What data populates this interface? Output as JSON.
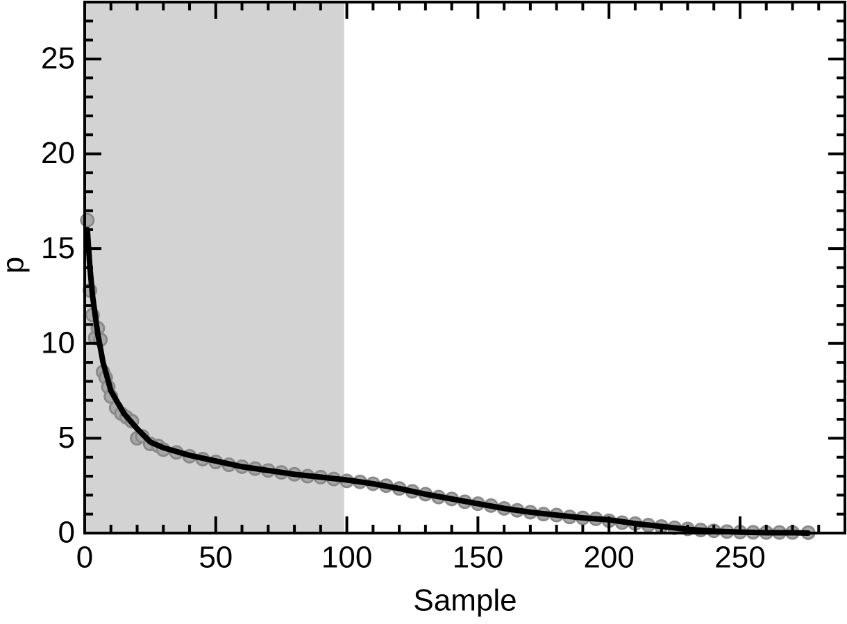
{
  "chart_data": {
    "type": "scatter-line",
    "xlabel": "Sample",
    "ylabel": "p",
    "xlim": [
      0,
      290
    ],
    "ylim": [
      0,
      28
    ],
    "xticks": [
      0,
      50,
      100,
      150,
      200,
      250
    ],
    "yticks": [
      0,
      5,
      10,
      15,
      20,
      25
    ],
    "xminorticks": [
      10,
      20,
      30,
      40,
      60,
      70,
      80,
      90,
      110,
      120,
      130,
      140,
      160,
      170,
      180,
      190,
      210,
      220,
      230,
      240,
      260,
      270,
      280
    ],
    "yminorticks": [
      1,
      2,
      3,
      4,
      6,
      7,
      8,
      9,
      11,
      12,
      13,
      14,
      16,
      17,
      18,
      19,
      21,
      22,
      23,
      24,
      26,
      27
    ],
    "shade": {
      "xlim": [
        0,
        99
      ],
      "color": "#d3d3d3"
    },
    "series": [
      {
        "kind": "scatter",
        "color": "#8a8a8a",
        "x": [
          1,
          2,
          3,
          4,
          5,
          6,
          7,
          8,
          9,
          10,
          12,
          14,
          16,
          18,
          20,
          22,
          25,
          28,
          30,
          35,
          40,
          45,
          50,
          55,
          60,
          65,
          70,
          75,
          80,
          85,
          90,
          95,
          100,
          105,
          110,
          115,
          120,
          125,
          130,
          135,
          140,
          145,
          150,
          155,
          160,
          165,
          170,
          175,
          180,
          185,
          190,
          195,
          200,
          205,
          210,
          215,
          220,
          225,
          230,
          235,
          240,
          245,
          250,
          255,
          260,
          265,
          270,
          276
        ],
        "values": [
          16.5,
          12.8,
          11.5,
          10.3,
          10.8,
          10.2,
          8.5,
          8.2,
          7.7,
          7.2,
          6.6,
          6.3,
          6.1,
          5.9,
          5.0,
          5.1,
          4.7,
          4.6,
          4.4,
          4.25,
          4.05,
          3.9,
          3.75,
          3.6,
          3.5,
          3.4,
          3.3,
          3.2,
          3.1,
          3.0,
          2.95,
          2.85,
          2.75,
          2.7,
          2.6,
          2.5,
          2.35,
          2.2,
          2.05,
          1.9,
          1.8,
          1.65,
          1.55,
          1.45,
          1.3,
          1.2,
          1.1,
          1.0,
          0.95,
          0.85,
          0.8,
          0.75,
          0.65,
          0.55,
          0.5,
          0.42,
          0.35,
          0.28,
          0.22,
          0.16,
          0.12,
          0.08,
          0.05,
          0.04,
          0.03,
          0.03,
          0.03,
          0.02
        ]
      },
      {
        "kind": "line",
        "color": "#000000",
        "x": [
          1,
          2,
          3,
          5,
          7,
          10,
          15,
          20,
          25,
          30,
          40,
          50,
          60,
          70,
          80,
          90,
          100,
          110,
          120,
          130,
          140,
          150,
          160,
          170,
          180,
          190,
          200,
          210,
          220,
          230,
          240,
          250,
          260,
          270,
          276
        ],
        "values": [
          16,
          14,
          12.5,
          10.5,
          9,
          7.5,
          6.3,
          5.5,
          4.8,
          4.5,
          4.1,
          3.8,
          3.5,
          3.3,
          3.1,
          2.95,
          2.8,
          2.6,
          2.35,
          2.05,
          1.8,
          1.55,
          1.3,
          1.1,
          0.95,
          0.8,
          0.7,
          0.5,
          0.35,
          0.2,
          0.1,
          0.05,
          0.02,
          0.02,
          0
        ]
      }
    ]
  }
}
